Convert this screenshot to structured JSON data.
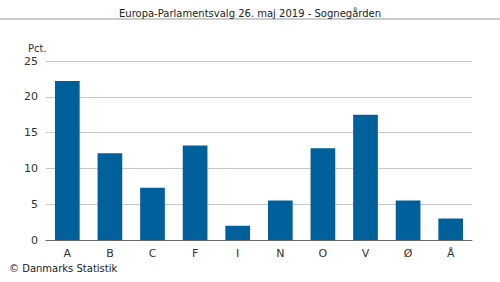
{
  "chart_data": {
    "type": "bar",
    "title": "Europa-Parlamentsvalg 26. maj 2019 - Sognegården",
    "ylabel": "Pct.",
    "annotation": "© Danmarks Statistik",
    "categories": [
      "A",
      "B",
      "C",
      "F",
      "I",
      "N",
      "O",
      "V",
      "Ø",
      "Å"
    ],
    "values": [
      22.2,
      12.1,
      7.3,
      13.2,
      2.0,
      5.5,
      12.8,
      17.5,
      5.5,
      3.0
    ],
    "color": "#00609c",
    "ylim": [
      0,
      25
    ],
    "yticks": [
      0,
      5,
      10,
      15,
      20,
      25
    ],
    "grid": true
  }
}
